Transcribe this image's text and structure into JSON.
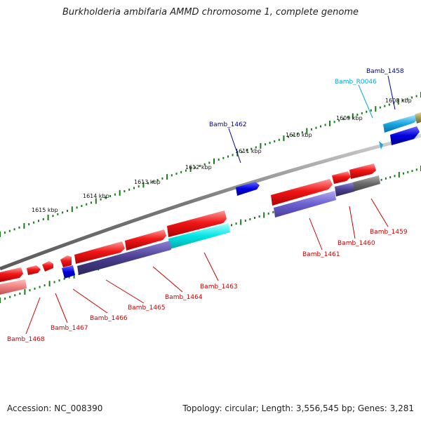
{
  "title": "Burkholderia ambifaria AMMD chromosome 1, complete genome",
  "accession": "Accession: NC_008390",
  "topology": "Topology: circular; Length: 3,556,545 bp; Genes: 3,281",
  "colors": {
    "backbone": "#8a8a8a",
    "tick": "#1a7a1a",
    "cds": "#f01010",
    "cds_product": "#4a3f8e",
    "highlight": "#00e5e5",
    "other_gene": "#0000e0",
    "label_red": "#cc0000",
    "label_blue": "#000099",
    "label_cyan": "#00aadd"
  },
  "kbp_labels": [
    "1608 kbp",
    "1609 kbp",
    "1610 kbp",
    "1611 kbp",
    "1612 kbp",
    "1613 kbp",
    "1614 kbp",
    "1615 kbp"
  ],
  "gene_labels": [
    {
      "text": "Bamb_1458",
      "color": "blue"
    },
    {
      "text": "Bamb_R0046",
      "color": "cyan"
    },
    {
      "text": "Bamb_1462",
      "color": "blue"
    },
    {
      "text": "Bamb_1459",
      "color": "red"
    },
    {
      "text": "Bamb_1460",
      "color": "red"
    },
    {
      "text": "Bamb_1461",
      "color": "red"
    },
    {
      "text": "Bamb_1463",
      "color": "red"
    },
    {
      "text": "Bamb_1464",
      "color": "red"
    },
    {
      "text": "Bamb_1465",
      "color": "red"
    },
    {
      "text": "Bamb_1466",
      "color": "red"
    },
    {
      "text": "Bamb_1467",
      "color": "red"
    },
    {
      "text": "Bamb_1468",
      "color": "red"
    }
  ]
}
